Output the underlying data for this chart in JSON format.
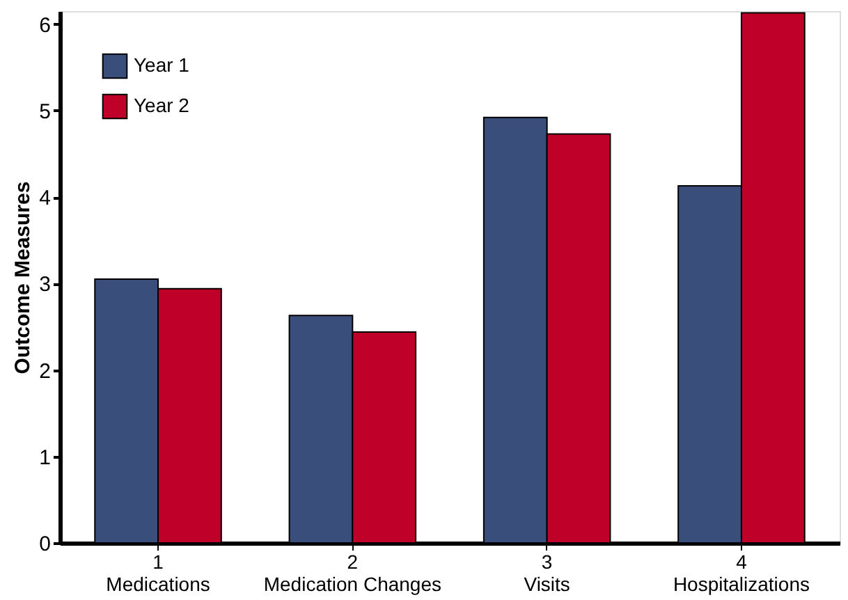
{
  "chart_data": {
    "type": "bar",
    "ylabel": "Outcome Measures",
    "categories": [
      "1\nMedications",
      "2\nMedication Changes",
      "3\nVisits",
      "4\nHospitalizations"
    ],
    "series": [
      {
        "name": "Year 1",
        "color": "#3a4e7c",
        "values": [
          3.05,
          2.63,
          4.92,
          4.13
        ]
      },
      {
        "name": "Year 2",
        "color": "#bf0028",
        "values": [
          2.94,
          2.44,
          4.73,
          6.13
        ]
      }
    ],
    "ylim": [
      0,
      6.15
    ],
    "yticks": [
      0,
      1,
      2,
      3,
      4,
      5,
      6
    ],
    "grid": false,
    "legend": "top left"
  }
}
